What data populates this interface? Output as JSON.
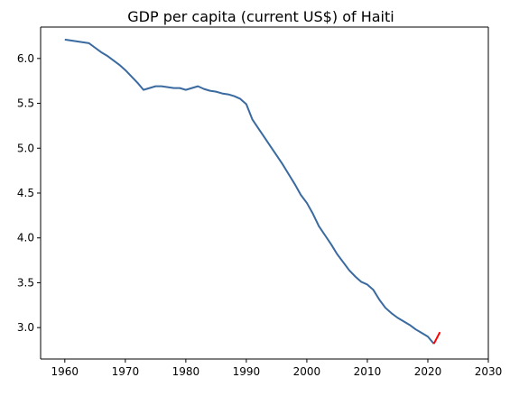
{
  "chart_data": {
    "type": "line",
    "title": "GDP per capita (current US$) of Haiti",
    "xlabel": "",
    "ylabel": "",
    "xlim": [
      1956,
      2030
    ],
    "ylim": [
      2.65,
      6.35
    ],
    "x_ticks": [
      1960,
      1970,
      1980,
      1990,
      2000,
      2010,
      2020,
      2030
    ],
    "y_ticks": [
      3.0,
      3.5,
      4.0,
      4.5,
      5.0,
      5.5,
      6.0
    ],
    "grid": false,
    "series": [
      {
        "color": "#3a6aa0",
        "x": [
          1960,
          1961,
          1962,
          1963,
          1964,
          1965,
          1966,
          1967,
          1968,
          1969,
          1970,
          1971,
          1972,
          1973,
          1974,
          1975,
          1976,
          1977,
          1978,
          1979,
          1980,
          1981,
          1982,
          1983,
          1984,
          1985,
          1986,
          1987,
          1988,
          1989,
          1990,
          1991,
          1992,
          1993,
          1994,
          1995,
          1996,
          1997,
          1998,
          1999,
          2000,
          2001,
          2002,
          2003,
          2004,
          2005,
          2006,
          2007,
          2008,
          2009,
          2010,
          2011,
          2012,
          2013,
          2014,
          2015,
          2016,
          2017,
          2018,
          2019,
          2020,
          2021
        ],
        "y": [
          6.21,
          6.2,
          6.19,
          6.18,
          6.17,
          6.12,
          6.07,
          6.03,
          5.98,
          5.93,
          5.87,
          5.8,
          5.73,
          5.65,
          5.67,
          5.69,
          5.69,
          5.68,
          5.67,
          5.67,
          5.65,
          5.67,
          5.69,
          5.66,
          5.64,
          5.63,
          5.61,
          5.6,
          5.58,
          5.55,
          5.49,
          5.32,
          5.22,
          5.12,
          5.02,
          4.92,
          4.82,
          4.71,
          4.6,
          4.48,
          4.39,
          4.27,
          4.13,
          4.03,
          3.93,
          3.82,
          3.73,
          3.64,
          3.57,
          3.51,
          3.48,
          3.42,
          3.31,
          3.22,
          3.16,
          3.11,
          3.07,
          3.03,
          2.98,
          2.94,
          2.9,
          2.82
        ]
      },
      {
        "color": "#ff0000",
        "x": [
          2021,
          2022
        ],
        "y": [
          2.82,
          2.95
        ]
      }
    ]
  }
}
